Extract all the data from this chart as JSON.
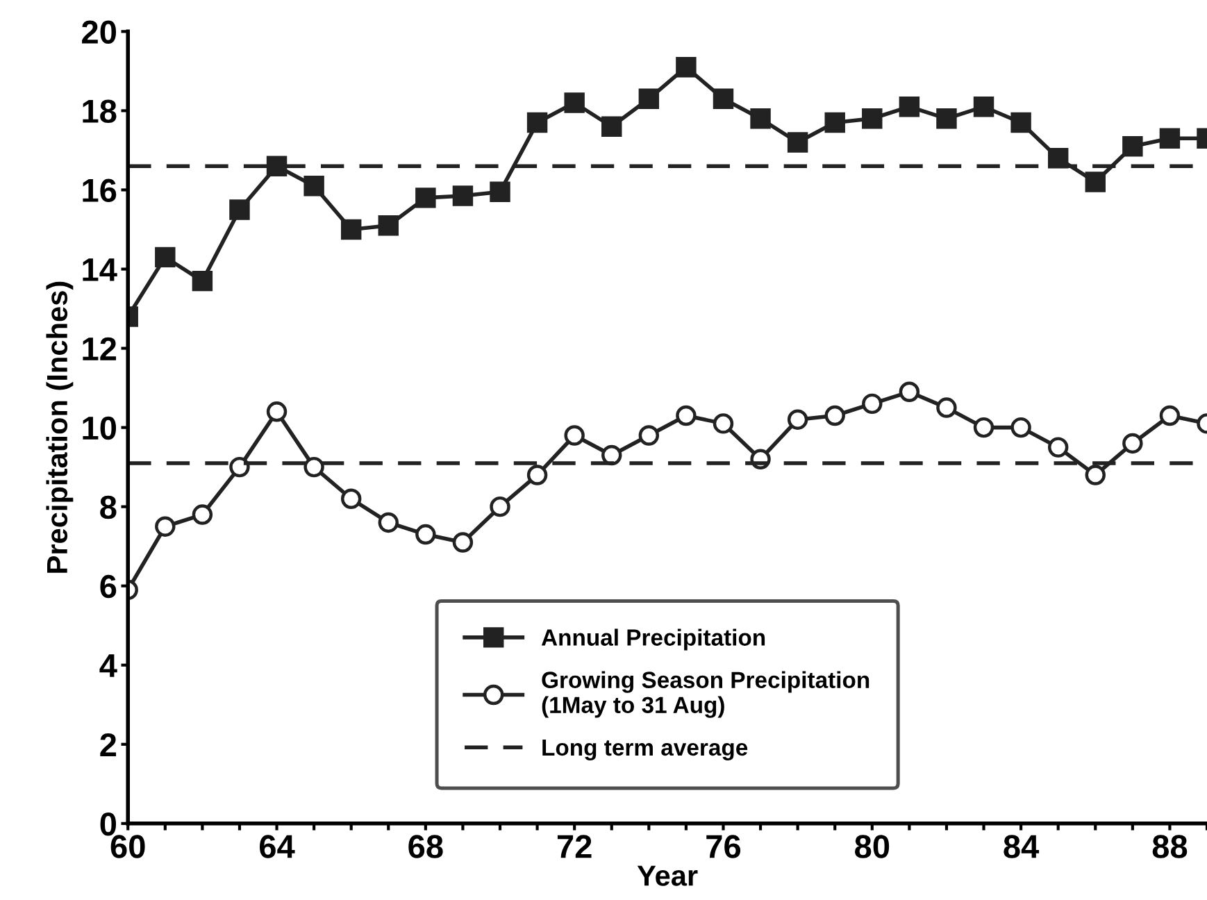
{
  "chart_data": {
    "type": "line",
    "xlabel": "Year",
    "ylabel": "Precipitation (Inches)",
    "x": [
      60,
      61,
      62,
      63,
      64,
      65,
      66,
      67,
      68,
      69,
      70,
      71,
      72,
      73,
      74,
      75,
      76,
      77,
      78,
      79,
      80,
      81,
      82,
      83,
      84,
      85,
      86,
      87,
      88,
      89
    ],
    "series": [
      {
        "name": "Annual Precipitation",
        "color": "#222222",
        "marker": "square",
        "values": [
          12.8,
          14.3,
          13.7,
          15.5,
          16.6,
          16.1,
          15.0,
          15.1,
          15.8,
          15.85,
          15.95,
          17.7,
          18.2,
          17.6,
          18.3,
          19.1,
          18.3,
          17.8,
          17.2,
          17.7,
          17.8,
          18.1,
          17.8,
          18.1,
          17.7,
          16.8,
          16.2,
          17.1,
          17.3,
          17.3
        ]
      },
      {
        "name": "Growing Season Precipitation\n(1May to 31 Aug)",
        "color": "#222222",
        "marker": "circle",
        "values": [
          5.9,
          7.5,
          7.8,
          9.0,
          10.4,
          9.0,
          8.2,
          7.6,
          7.3,
          7.1,
          8.0,
          8.8,
          9.8,
          9.3,
          9.8,
          10.3,
          10.1,
          9.2,
          10.2,
          10.3,
          10.6,
          10.9,
          10.5,
          10.0,
          10.0,
          9.5,
          8.8,
          9.6,
          10.3,
          10.1
        ]
      }
    ],
    "ref_lines": [
      {
        "axis": "y",
        "value": 16.6,
        "label": "Long term average",
        "line_style": "dashed",
        "color": "#222222"
      },
      {
        "axis": "y",
        "value": 9.1,
        "label": null,
        "line_style": "dashed",
        "color": "#222222"
      }
    ],
    "xlim": [
      60,
      89
    ],
    "xticks": [
      60,
      {
        "value": 61,
        "label": null
      },
      {
        "value": 62,
        "label": null
      },
      {
        "value": 63,
        "label": null
      },
      64,
      {
        "value": 65,
        "label": null
      },
      {
        "value": 66,
        "label": null
      },
      {
        "value": 67,
        "label": null
      },
      68,
      {
        "value": 69,
        "label": null
      },
      {
        "value": 70,
        "label": null
      },
      {
        "value": 71,
        "label": null
      },
      72,
      {
        "value": 73,
        "label": null
      },
      {
        "value": 74,
        "label": null
      },
      {
        "value": 75,
        "label": null
      },
      76,
      {
        "value": 77,
        "label": null
      },
      {
        "value": 78,
        "label": null
      },
      {
        "value": 79,
        "label": null
      },
      80,
      {
        "value": 81,
        "label": null
      },
      {
        "value": 82,
        "label": null
      },
      {
        "value": 83,
        "label": null
      },
      84,
      {
        "value": 85,
        "label": null
      },
      {
        "value": 86,
        "label": null
      },
      {
        "value": 87,
        "label": null
      },
      88,
      {
        "value": 89,
        "label": null
      }
    ],
    "ylim": [
      0,
      20
    ],
    "yticks": [
      0,
      2,
      4,
      6,
      8,
      10,
      12,
      14,
      16,
      18,
      20
    ],
    "grid": false,
    "legend": "bottom",
    "line_style": "solid"
  }
}
